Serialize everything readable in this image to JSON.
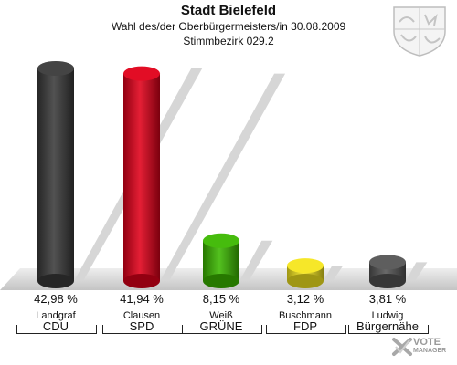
{
  "header": {
    "title": "Stadt Bielefeld",
    "subtitle": "Wahl des/der Oberbürgermeisters/in 30.08.2009",
    "district": "Stimmbezirk 029.2"
  },
  "chart_data": {
    "type": "bar",
    "title": "Stadt Bielefeld",
    "subtitle": "Wahl des/der Oberbürgermeisters/in 30.08.2009 — Stimmbezirk 029.2",
    "ylim": [
      0,
      45
    ],
    "grid": false,
    "legend": "none",
    "categories": [
      "Landgraf CDU",
      "Clausen SPD",
      "Weiß GRÜNE",
      "Buschmann FDP",
      "Ludwig Bürgernähe"
    ],
    "values": [
      42.98,
      41.94,
      8.15,
      3.12,
      3.81
    ],
    "value_labels": [
      "42,98 %",
      "41,94 %",
      "8,15 %",
      "3,12 %",
      "3,81 %"
    ],
    "candidates": [
      "Landgraf",
      "Clausen",
      "Weiß",
      "Buschmann",
      "Ludwig"
    ],
    "parties": [
      "CDU",
      "SPD",
      "GRÜNE",
      "FDP",
      "Bürgernähe"
    ],
    "colors": [
      "#3a3a3a",
      "#e0001a",
      "#3cb800",
      "#f5e61e",
      "#555555"
    ]
  },
  "logo": {
    "line1": "VOTE",
    "line2": "MANAGER",
    "icon": "checkmark-x-icon"
  },
  "crest": {
    "icon": "coat-of-arms-icon"
  }
}
